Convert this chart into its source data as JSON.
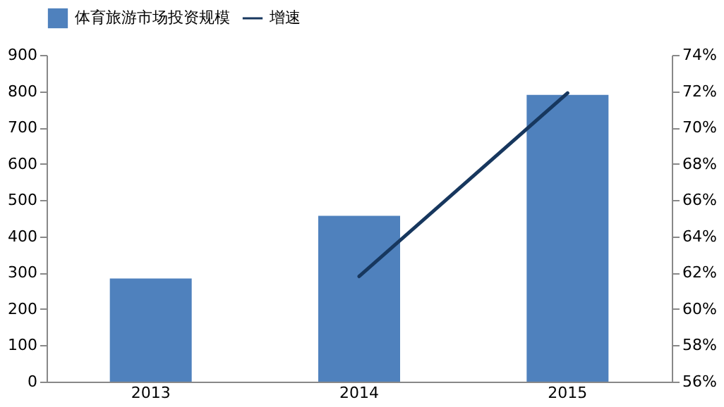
{
  "chart_data": {
    "type": "bar",
    "categories": [
      "2013",
      "2014",
      "2015"
    ],
    "series": [
      {
        "name": "体育旅游市场投资规模",
        "color": "#4f81bd",
        "values": [
          284,
          457,
          790
        ]
      },
      {
        "name": "增速",
        "type": "line",
        "axis": "y2",
        "color": "#17375e",
        "values": [
          null,
          61.8,
          71.9
        ]
      }
    ],
    "ylim": [
      0,
      900
    ],
    "yticks": [
      0,
      100,
      200,
      300,
      400,
      500,
      600,
      700,
      800,
      900
    ],
    "y2lim": [
      56,
      74
    ],
    "y2ticks": [
      {
        "value": 56,
        "label": "56%"
      },
      {
        "value": 58,
        "label": "58%"
      },
      {
        "value": 60,
        "label": "60%"
      },
      {
        "value": 62,
        "label": "62%"
      },
      {
        "value": 64,
        "label": "64%"
      },
      {
        "value": 66,
        "label": "66%"
      },
      {
        "value": 68,
        "label": "68%"
      },
      {
        "value": 70,
        "label": "70%"
      },
      {
        "value": 72,
        "label": "72%"
      },
      {
        "value": 74,
        "label": "74%"
      }
    ],
    "legend": "top",
    "grid": false
  }
}
